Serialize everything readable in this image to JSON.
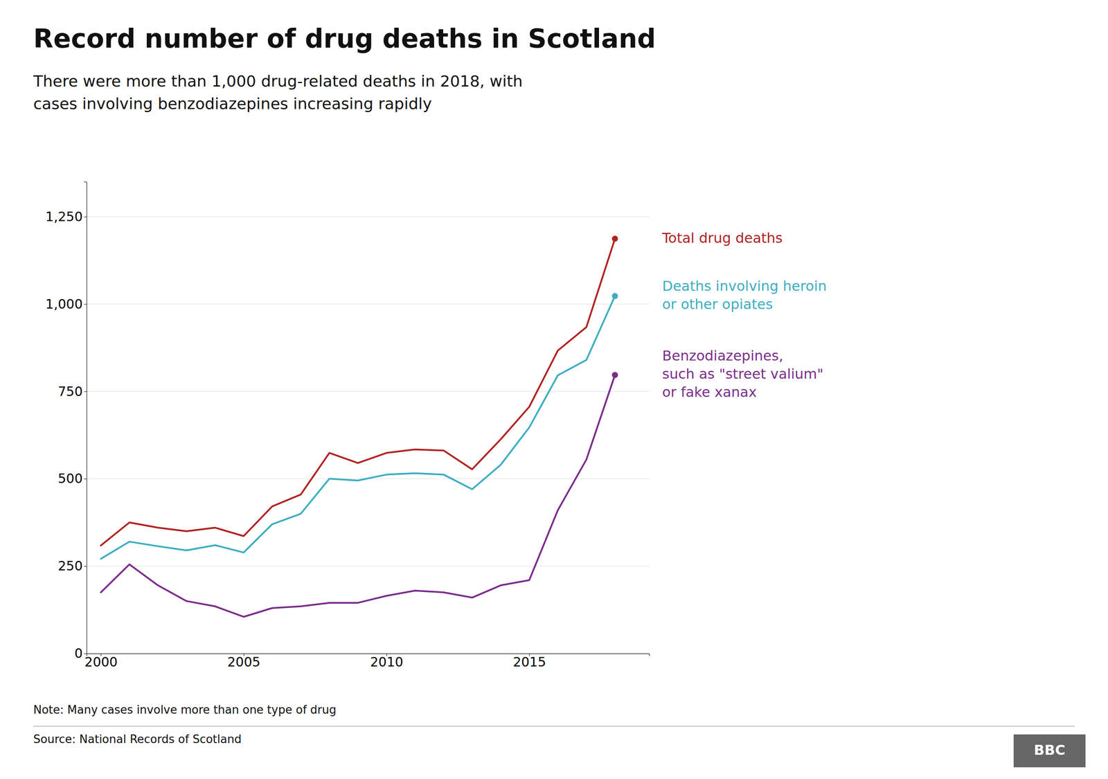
{
  "chart_data": {
    "type": "line",
    "title": "Record number of drug deaths in Scotland",
    "subtitle": "There were more than 1,000 drug-related deaths in 2018, with\ncases involving benzodiazepines increasing rapidly",
    "x": [
      2000,
      2001,
      2002,
      2003,
      2004,
      2005,
      2006,
      2007,
      2008,
      2009,
      2010,
      2011,
      2012,
      2013,
      2014,
      2015,
      2016,
      2017,
      2018
    ],
    "series": [
      {
        "name": "Total drug deaths",
        "color": "#b22222",
        "values": [
          309,
          375,
          360,
          350,
          360,
          336,
          421,
          455,
          574,
          545,
          574,
          584,
          581,
          527,
          613,
          706,
          867,
          934,
          1187
        ]
      },
      {
        "name": "Deaths involving heroin\nor other opiates",
        "color": "#3daec2",
        "values": [
          271,
          320,
          307,
          295,
          310,
          289,
          370,
          400,
          500,
          495,
          512,
          516,
          512,
          470,
          540,
          647,
          796,
          840,
          1023
        ]
      },
      {
        "name": "Benzodiazepines,\nsuch as \"street valium\"\nor fake xanax",
        "color": "#7b2d8b",
        "values": [
          175,
          255,
          195,
          150,
          135,
          105,
          130,
          135,
          145,
          145,
          165,
          180,
          175,
          160,
          195,
          210,
          410,
          555,
          797
        ]
      }
    ],
    "xlim": [
      1999.5,
      2019.2
    ],
    "xticks": [
      2000,
      2005,
      2010,
      2015
    ],
    "ylim": [
      0,
      1350
    ],
    "yticks": [
      0,
      250,
      500,
      750,
      {
        "value": 1000,
        "label": "1,000"
      },
      {
        "value": 1250,
        "label": "1,250"
      }
    ],
    "grid": "y",
    "annotations": [
      "Note: Many cases involve more than one type of drug",
      "Source: National Records of Scotland",
      "BBC"
    ]
  }
}
